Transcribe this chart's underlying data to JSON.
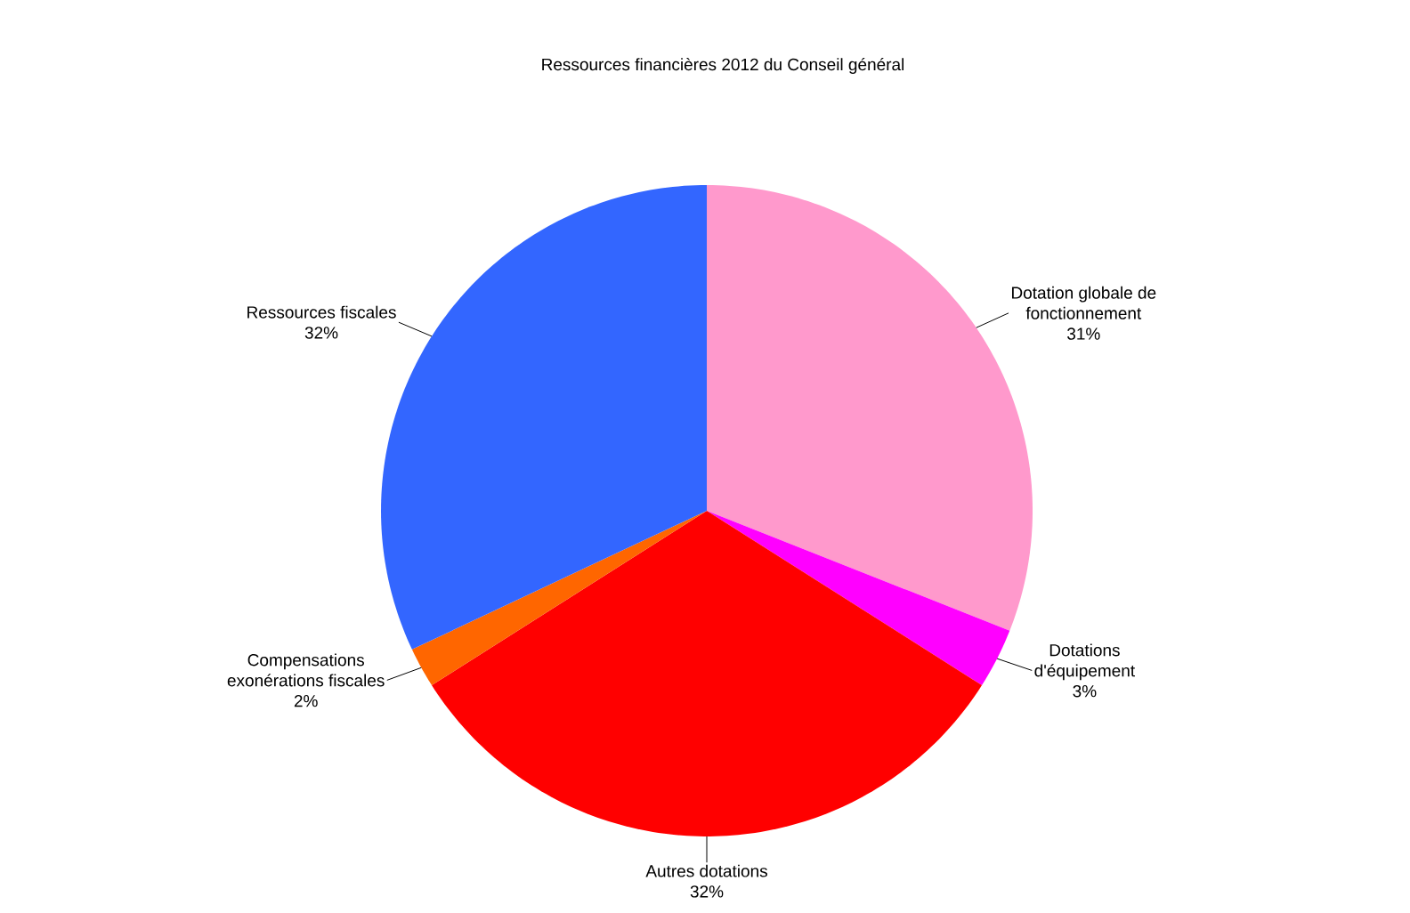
{
  "chart_data": {
    "type": "pie",
    "title": "Ressources financières 2012 du Conseil général",
    "categories": [
      "Dotation globale de fonctionnement",
      "Dotations d'équipement",
      "Autres dotations",
      "Compensations exonérations fiscales",
      "Ressources fiscales"
    ],
    "values": [
      31,
      3,
      32,
      2,
      32
    ],
    "value_labels": [
      "31%",
      "3%",
      "32%",
      "2%",
      "32%"
    ],
    "colors": [
      "#ff99cc",
      "#ff00ff",
      "#ff0000",
      "#ff6600",
      "#3366ff"
    ]
  }
}
